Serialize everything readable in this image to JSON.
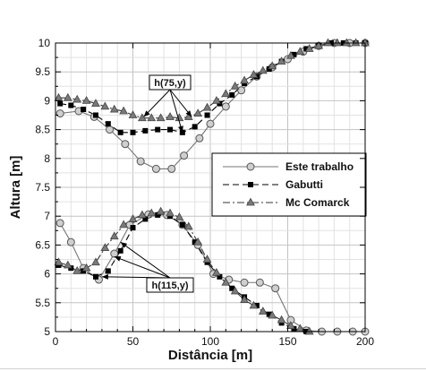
{
  "chart_data": {
    "type": "line",
    "xlabel": "Distância [m]",
    "ylabel": "Altura [m]",
    "xlim": [
      0,
      200
    ],
    "ylim": [
      5,
      10
    ],
    "xticks": [
      0,
      50,
      100,
      150,
      200
    ],
    "yticks": [
      5,
      5.5,
      6,
      6.5,
      7,
      7.5,
      8,
      8.5,
      9,
      9.5,
      10
    ],
    "grid": true,
    "legend_position": "center-right",
    "annotations": [
      {
        "text": "h(75,y)",
        "targets": [
          [
            57,
            8.72
          ],
          [
            82,
            8.45
          ],
          [
            88,
            8.72
          ]
        ]
      },
      {
        "text": "h(115,y)",
        "targets": [
          [
            30,
            5.95
          ],
          [
            38,
            6.3
          ],
          [
            42,
            6.55
          ]
        ]
      }
    ],
    "series": [
      {
        "name": "Este trabalho",
        "style": "solid",
        "marker": "circle",
        "color": "#888888",
        "groups": [
          {
            "x": [
              3,
              15,
              25,
              35,
              45,
              55,
              65,
              75,
              83,
              93,
              100,
              110,
              120,
              130,
              140,
              150,
              160,
              170,
              180,
              190,
              200
            ],
            "y": [
              8.78,
              8.82,
              8.72,
              8.5,
              8.25,
              7.95,
              7.82,
              7.82,
              8.05,
              8.35,
              8.6,
              8.9,
              9.18,
              9.42,
              9.58,
              9.72,
              9.85,
              9.95,
              10.0,
              10.0,
              10.0
            ]
          },
          {
            "x": [
              3,
              10,
              18,
              28,
              38,
              48,
              60,
              72,
              82,
              92,
              102,
              112,
              122,
              132,
              142,
              152,
              162,
              172,
              182,
              192,
              200
            ],
            "y": [
              6.88,
              6.55,
              6.1,
              5.9,
              6.35,
              6.85,
              7.03,
              7.02,
              6.85,
              6.5,
              6.0,
              5.9,
              5.85,
              5.85,
              5.75,
              5.2,
              5.02,
              5.0,
              5.0,
              5.0,
              5.0
            ]
          }
        ]
      },
      {
        "name": "Gabutti",
        "style": "dashed",
        "marker": "square",
        "color": "#000000",
        "groups": [
          {
            "x": [
              3,
              10,
              18,
              26,
              34,
              42,
              50,
              58,
              66,
              74,
              82,
              90,
              98,
              106,
              114,
              122,
              130,
              138,
              146,
              154,
              162,
              170,
              178,
              186,
              194,
              200
            ],
            "y": [
              8.95,
              8.92,
              8.85,
              8.75,
              8.6,
              8.45,
              8.45,
              8.48,
              8.5,
              8.5,
              8.45,
              8.55,
              8.75,
              8.95,
              9.1,
              9.3,
              9.42,
              9.55,
              9.68,
              9.8,
              9.9,
              9.95,
              10.0,
              10.0,
              10.0,
              10.0
            ]
          },
          {
            "x": [
              2,
              10,
              18,
              26,
              34,
              42,
              50,
              58,
              66,
              74,
              82,
              90,
              98,
              106,
              114,
              122,
              130,
              138,
              146,
              154,
              162
            ],
            "y": [
              6.15,
              6.1,
              6.05,
              5.95,
              6.05,
              6.4,
              6.8,
              6.95,
              7.02,
              7.0,
              6.85,
              6.55,
              6.2,
              5.95,
              5.75,
              5.6,
              5.45,
              5.3,
              5.15,
              5.05,
              5.0
            ]
          }
        ]
      },
      {
        "name": "Mc Comarck",
        "style": "dashdot",
        "marker": "triangle",
        "color": "#555555",
        "groups": [
          {
            "x": [
              2,
              8,
              14,
              20,
              26,
              32,
              38,
              44,
              50,
              56,
              62,
              68,
              74,
              80,
              86,
              92,
              98,
              104,
              110,
              116,
              122,
              128,
              134,
              140,
              146,
              152,
              158,
              164,
              170,
              176,
              182,
              188,
              194,
              200
            ],
            "y": [
              9.05,
              9.05,
              9.02,
              9.0,
              8.95,
              8.9,
              8.85,
              8.82,
              8.75,
              8.7,
              8.7,
              8.7,
              8.72,
              8.7,
              8.72,
              8.78,
              8.88,
              9.0,
              9.12,
              9.25,
              9.35,
              9.45,
              9.52,
              9.6,
              9.68,
              9.78,
              9.85,
              9.9,
              9.95,
              10.0,
              10.0,
              10.0,
              10.0,
              10.0
            ]
          },
          {
            "x": [
              2,
              8,
              14,
              20,
              26,
              32,
              38,
              44,
              50,
              56,
              62,
              68,
              74,
              80,
              86,
              92,
              98,
              104,
              110,
              116,
              122,
              128,
              134,
              140,
              146,
              152,
              158,
              164
            ],
            "y": [
              6.2,
              6.15,
              6.05,
              6.1,
              6.2,
              6.45,
              6.65,
              6.85,
              6.95,
              7.02,
              7.05,
              7.08,
              7.05,
              6.98,
              6.82,
              6.55,
              6.25,
              6.02,
              5.85,
              5.7,
              5.55,
              5.45,
              5.35,
              5.28,
              5.2,
              5.1,
              5.05,
              5.0
            ]
          }
        ]
      }
    ]
  }
}
